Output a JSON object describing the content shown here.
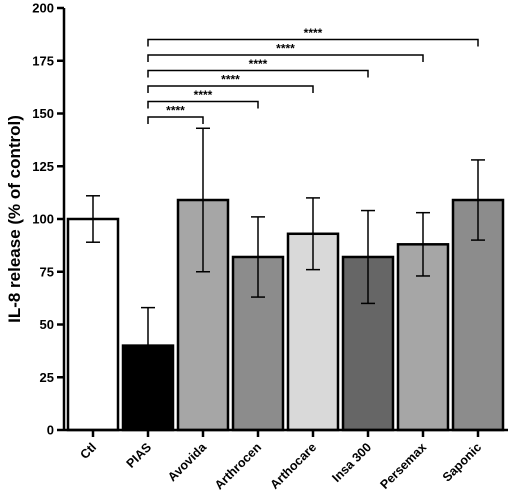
{
  "chart_data": {
    "type": "bar",
    "title": "",
    "xlabel": "",
    "ylabel": "IL-8 release (% of control)",
    "ylim": [
      0,
      200
    ],
    "yticks": [
      0,
      25,
      50,
      75,
      100,
      125,
      150,
      175,
      200
    ],
    "grid": false,
    "legend": "none",
    "categories": [
      "Ctl",
      "PIAS",
      "Avovida",
      "Arthrocen",
      "Arthocare",
      "Insa 300",
      "Persemax",
      "Saponic"
    ],
    "values": [
      100,
      40,
      109,
      82,
      93,
      82,
      88,
      109
    ],
    "error_bars": [
      11,
      18,
      34,
      19,
      17,
      22,
      15,
      19
    ],
    "bar_colors": [
      "#ffffff",
      "#000000",
      "#a6a6a6",
      "#8c8c8c",
      "#d9d9d9",
      "#666666",
      "#a6a6a6",
      "#8c8c8c"
    ],
    "significance": [
      {
        "from": "PIAS",
        "to": "Avovida",
        "label": "****"
      },
      {
        "from": "PIAS",
        "to": "Arthrocen",
        "label": "****"
      },
      {
        "from": "PIAS",
        "to": "Arthocare",
        "label": "****"
      },
      {
        "from": "PIAS",
        "to": "Insa 300",
        "label": "****"
      },
      {
        "from": "PIAS",
        "to": "Persemax",
        "label": "****"
      },
      {
        "from": "PIAS",
        "to": "Saponic",
        "label": "****"
      }
    ]
  }
}
